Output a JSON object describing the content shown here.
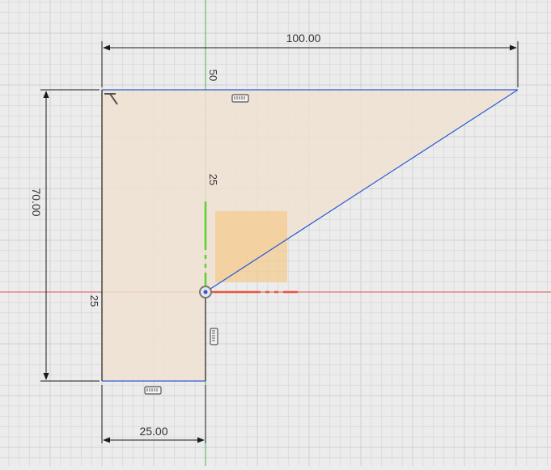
{
  "viewport": {
    "background": "#ececec",
    "grid_minor_color": "#dcdcdc",
    "grid_major_color": "#cfcfcf"
  },
  "sketch": {
    "profile_fill": "#f0e2d2",
    "line_color": "#1a1a1a",
    "constrained_line_color": "#2a5bd7",
    "point_highlight_fill": "#f5c783"
  },
  "axes": {
    "x_axis_color": "#e05050",
    "y_axis_color": "#4caf50",
    "origin_icon": "origin-point-icon"
  },
  "dimensions": {
    "top_width": "100.00",
    "left_height": "70.00",
    "bottom_width": "25.00"
  },
  "ruler_labels": {
    "y_50": "50",
    "y_25": "25",
    "x_25": "25"
  },
  "constraint_icons": {
    "top_edge": "horizontal-constraint-icon",
    "bottom_edge": "horizontal-constraint-icon",
    "right_edge": "vertical-constraint-icon",
    "corner": "perpendicular-constraint-icon"
  }
}
